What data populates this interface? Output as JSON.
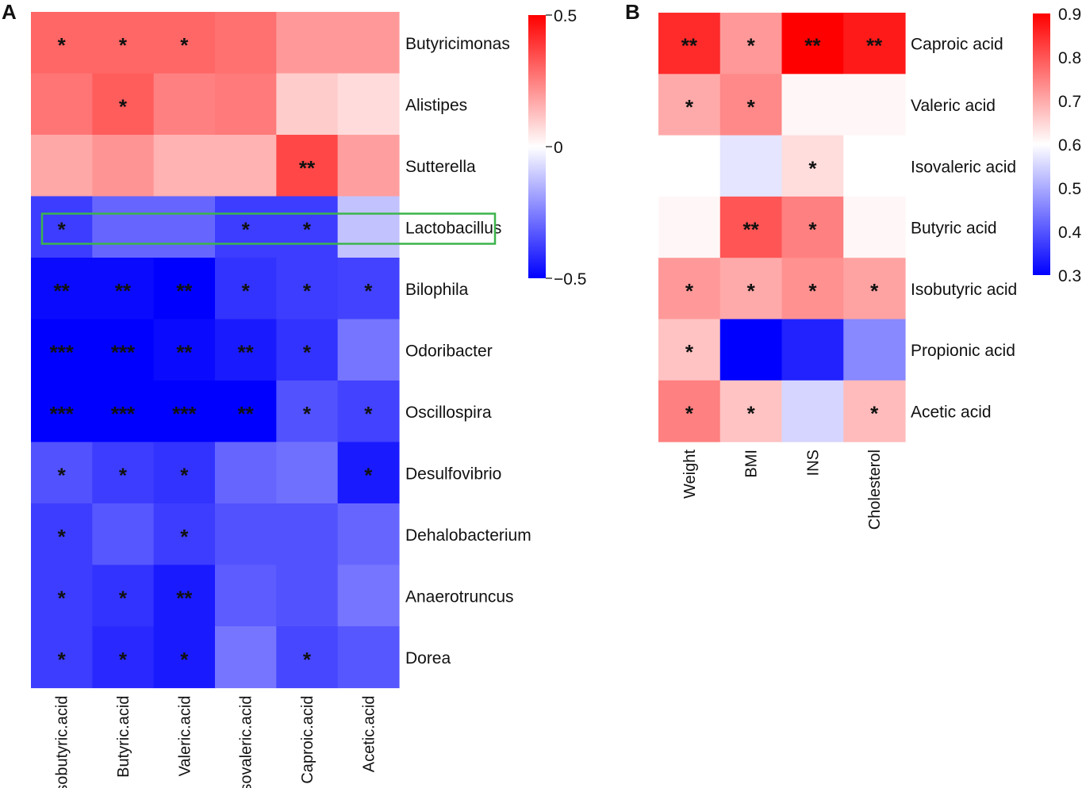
{
  "chart_data": [
    {
      "panel": "A",
      "type": "heatmap",
      "columns": [
        "Isobutyric.acid",
        "Butyric.acid",
        "Valeric.acid",
        "Isovaleric.acid",
        "Caproic.acid",
        "Acetic.acid"
      ],
      "rows": [
        "Butyricimonas",
        "Alistipes",
        "Sutterella",
        "Lactobacillus",
        "Bilophila",
        "Odoribacter",
        "Oscillospira",
        "Desulfovibrio",
        "Dehalobacterium",
        "Anaerotruncus",
        "Dorea"
      ],
      "values": [
        [
          0.3,
          0.3,
          0.3,
          0.28,
          0.2,
          0.2
        ],
        [
          0.27,
          0.32,
          0.25,
          0.26,
          0.1,
          0.07
        ],
        [
          0.17,
          0.21,
          0.15,
          0.15,
          0.36,
          0.19
        ],
        [
          -0.38,
          -0.3,
          -0.3,
          -0.38,
          -0.38,
          -0.12
        ],
        [
          -0.48,
          -0.48,
          -0.52,
          -0.4,
          -0.38,
          -0.37
        ],
        [
          -0.55,
          -0.55,
          -0.48,
          -0.45,
          -0.4,
          -0.27
        ],
        [
          -0.58,
          -0.56,
          -0.62,
          -0.5,
          -0.34,
          -0.37
        ],
        [
          -0.34,
          -0.38,
          -0.4,
          -0.3,
          -0.28,
          -0.45
        ],
        [
          -0.38,
          -0.33,
          -0.38,
          -0.34,
          -0.34,
          -0.3
        ],
        [
          -0.38,
          -0.4,
          -0.45,
          -0.32,
          -0.34,
          -0.27
        ],
        [
          -0.38,
          -0.42,
          -0.45,
          -0.27,
          -0.36,
          -0.33
        ]
      ],
      "significance": [
        [
          "*",
          "*",
          "*",
          "",
          "",
          ""
        ],
        [
          "",
          "*",
          "",
          "",
          "",
          ""
        ],
        [
          "",
          "",
          "",
          "",
          "**",
          ""
        ],
        [
          "*",
          "",
          "",
          "*",
          "*",
          ""
        ],
        [
          "**",
          "**",
          "**",
          "*",
          "*",
          "*"
        ],
        [
          "***",
          "***",
          "**",
          "**",
          "*",
          ""
        ],
        [
          "***",
          "***",
          "***",
          "**",
          "*",
          "*"
        ],
        [
          "*",
          "*",
          "*",
          "",
          "",
          "*"
        ],
        [
          "*",
          "",
          "*",
          "",
          "",
          ""
        ],
        [
          "*",
          "*",
          "**",
          "",
          "",
          ""
        ],
        [
          "*",
          "*",
          "*",
          "",
          "*",
          ""
        ]
      ],
      "highlighted_row": "Lactobacillus",
      "color_range": [
        -0.5,
        0.5
      ],
      "color_ticks": [
        {
          "value": 0.5,
          "label": "0.5"
        },
        {
          "value": 0,
          "label": "0"
        },
        {
          "value": -0.5,
          "label": "−0.5"
        }
      ]
    },
    {
      "panel": "B",
      "type": "heatmap",
      "columns": [
        "Weight",
        "BMI",
        "INS",
        "Cholesterol"
      ],
      "rows": [
        "Caproic acid",
        "Valeric acid",
        "Isovaleric acid",
        "Butyric acid",
        "Isobutyric acid",
        "Propionic acid",
        "Acetic acid"
      ],
      "values": [
        [
          0.85,
          0.72,
          0.91,
          0.87
        ],
        [
          0.7,
          0.74,
          0.61,
          0.61
        ],
        [
          0.6,
          0.57,
          0.64,
          0.6
        ],
        [
          0.61,
          0.8,
          0.75,
          0.61
        ],
        [
          0.72,
          0.7,
          0.73,
          0.71
        ],
        [
          0.67,
          0.3,
          0.34,
          0.46
        ],
        [
          0.75,
          0.67,
          0.55,
          0.68
        ]
      ],
      "significance": [
        [
          "**",
          "*",
          "**",
          "**"
        ],
        [
          "*",
          "*",
          "",
          ""
        ],
        [
          "",
          "",
          "*",
          ""
        ],
        [
          "",
          "**",
          "*",
          ""
        ],
        [
          "*",
          "*",
          "*",
          "*"
        ],
        [
          "*",
          "",
          "",
          ""
        ],
        [
          "*",
          "*",
          "",
          "*"
        ]
      ],
      "color_range": [
        0.3,
        0.9
      ],
      "color_mid": 0.6,
      "color_ticks": [
        {
          "value": 0.9,
          "label": "0.9"
        },
        {
          "value": 0.8,
          "label": "0.8"
        },
        {
          "value": 0.7,
          "label": "0.7"
        },
        {
          "value": 0.6,
          "label": "0.6"
        },
        {
          "value": 0.5,
          "label": "0.5"
        },
        {
          "value": 0.4,
          "label": "0.4"
        },
        {
          "value": 0.3,
          "label": "0.3"
        }
      ]
    }
  ],
  "colors": {
    "high": "#ff0000",
    "mid": "#ffffff",
    "low": "#0000ff",
    "highlight_box": "#3cb44b"
  }
}
